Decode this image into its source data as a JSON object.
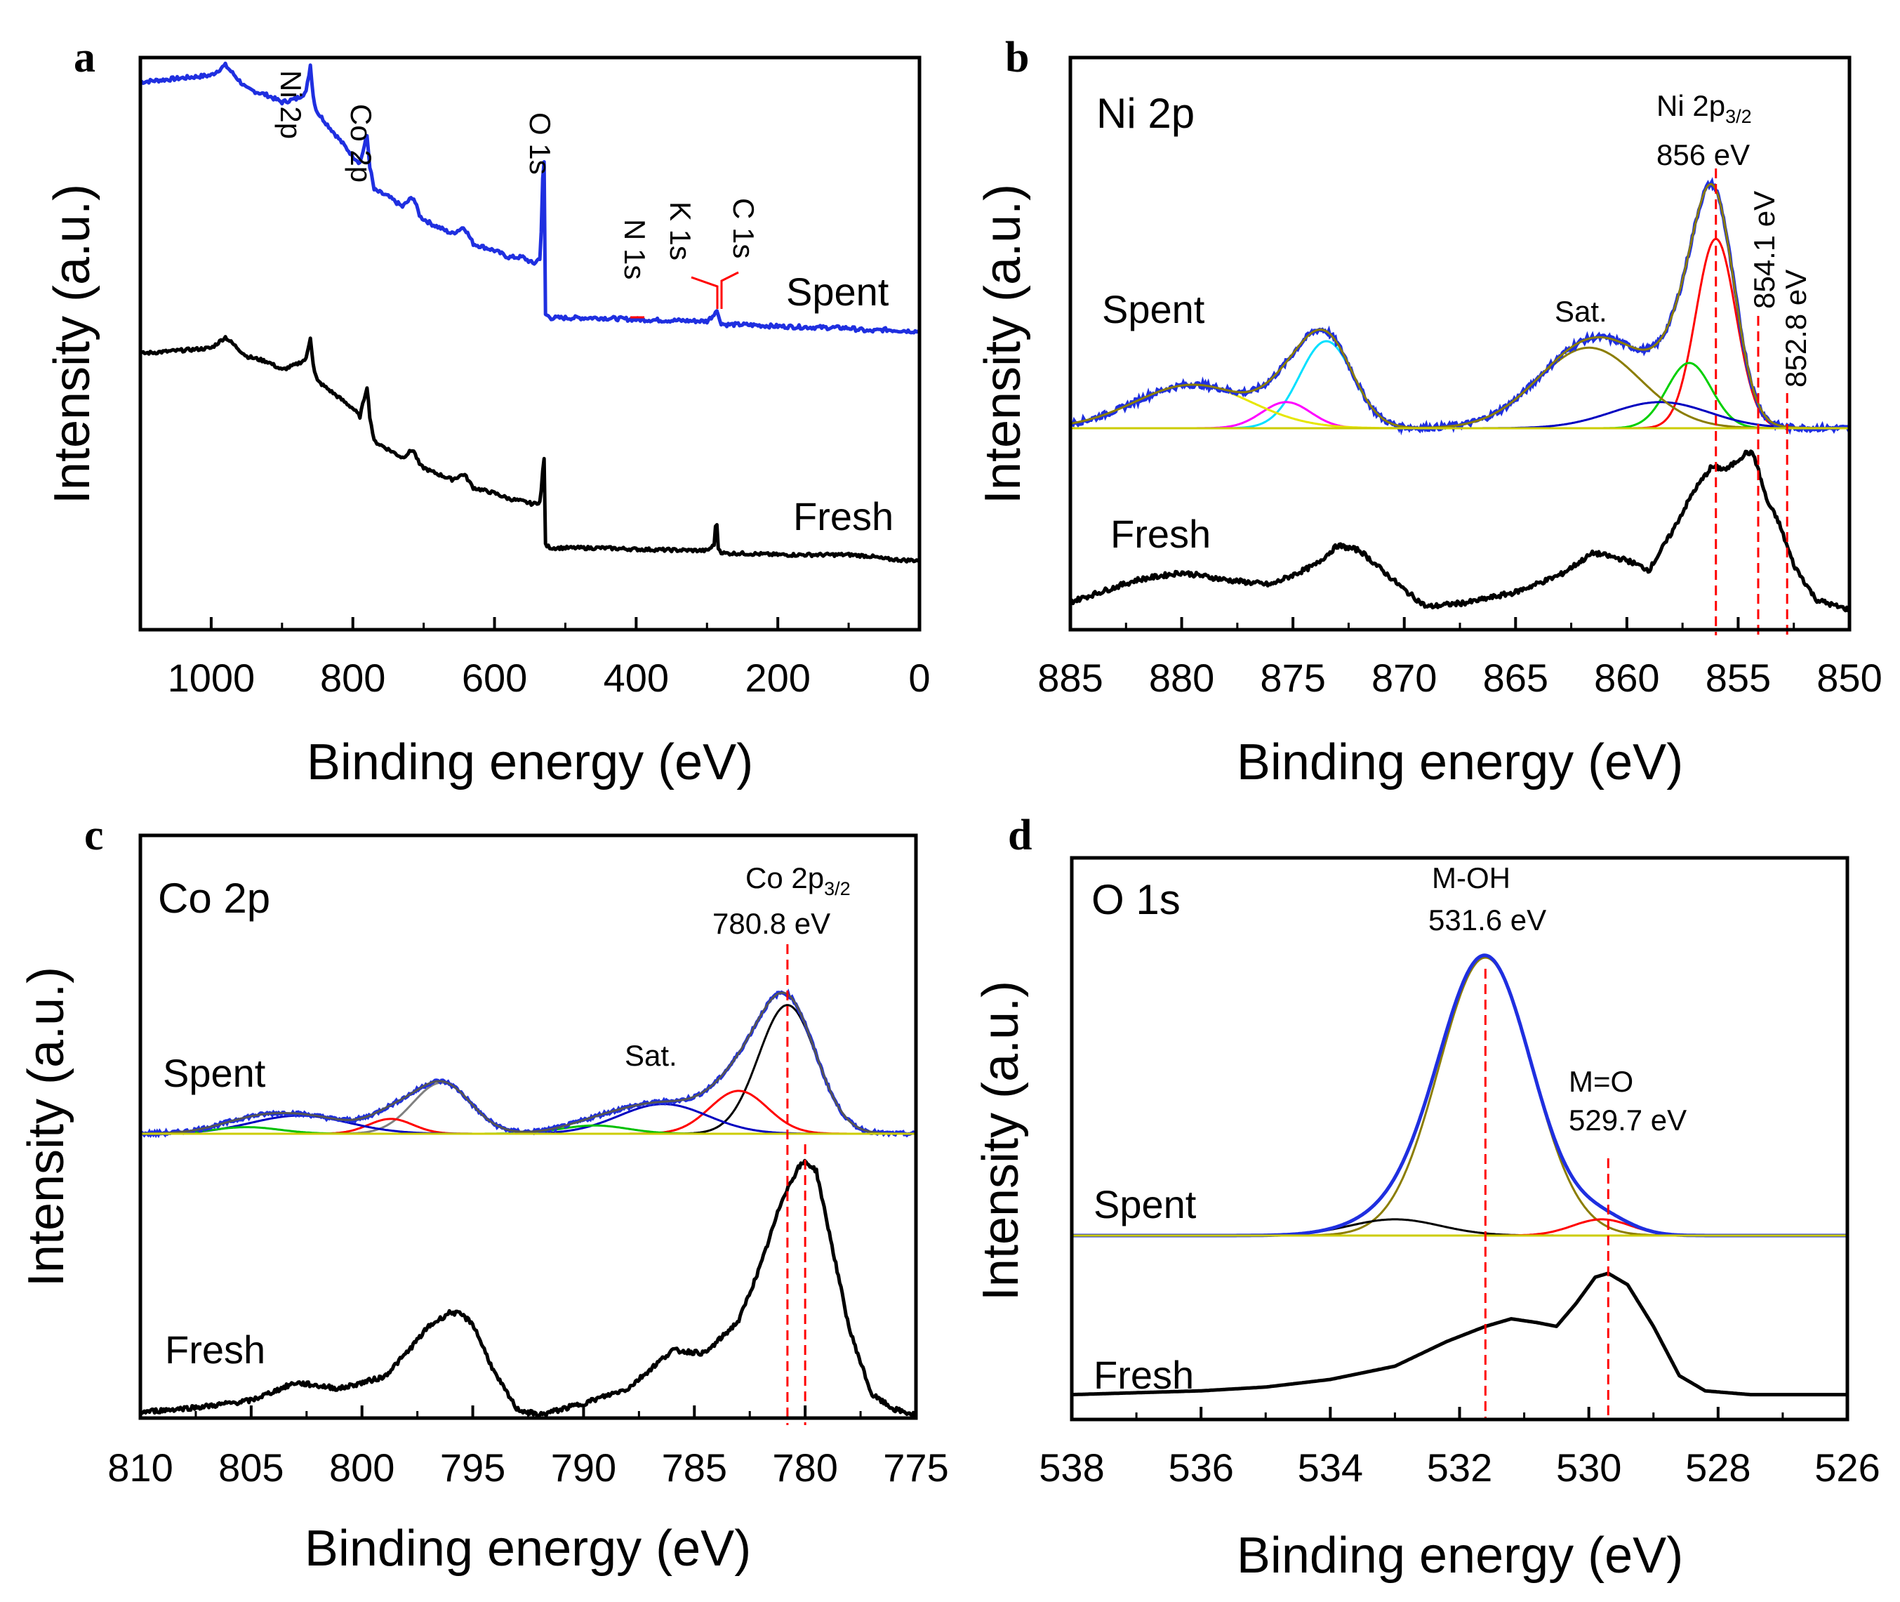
{
  "chart_data": [
    {
      "panel": "a",
      "type": "line",
      "xlabel": "Binding energy (eV)",
      "ylabel": "Intensity (a.u.)",
      "xlim": [
        1100,
        0
      ],
      "xticks": [
        1000,
        800,
        600,
        400,
        200,
        0
      ],
      "series": [
        {
          "name": "Spent",
          "color": "#1f2fe0",
          "offset": 1.0,
          "x": [
            1100,
            1050,
            1000,
            980,
            950,
            920,
            900,
            880,
            866,
            860,
            855,
            850,
            800,
            790,
            780,
            776,
            770,
            750,
            730,
            715,
            705,
            690,
            660,
            643,
            630,
            600,
            580,
            560,
            545,
            535,
            532,
            530,
            528,
            520,
            450,
            400,
            300,
            290,
            287,
            284,
            280,
            275,
            250,
            200,
            150,
            100,
            70,
            50,
            20,
            0
          ],
          "y": [
            0.74,
            0.75,
            0.76,
            0.79,
            0.72,
            0.7,
            0.68,
            0.69,
            0.71,
            0.79,
            0.68,
            0.65,
            0.52,
            0.5,
            0.58,
            0.49,
            0.42,
            0.4,
            0.37,
            0.4,
            0.34,
            0.32,
            0.29,
            0.31,
            0.26,
            0.24,
            0.22,
            0.22,
            0.2,
            0.22,
            0.45,
            0.5,
            0.05,
            0.04,
            0.04,
            0.035,
            0.03,
            0.05,
            0.07,
            0.045,
            0.025,
            0.02,
            0.02,
            0.015,
            0.012,
            0.01,
            0.0,
            0.005,
            0.002,
            0.0
          ]
        },
        {
          "name": "Fresh",
          "color": "#000000",
          "offset": 0.0,
          "x": [
            1100,
            1050,
            1000,
            980,
            950,
            920,
            900,
            880,
            866,
            860,
            855,
            850,
            800,
            790,
            780,
            776,
            770,
            750,
            730,
            715,
            705,
            690,
            660,
            643,
            630,
            600,
            580,
            560,
            545,
            535,
            532,
            530,
            528,
            520,
            450,
            400,
            300,
            290,
            287,
            284,
            280,
            275,
            250,
            200,
            150,
            100,
            70,
            50,
            20,
            0
          ],
          "y": [
            0.76,
            0.77,
            0.78,
            0.82,
            0.75,
            0.73,
            0.7,
            0.72,
            0.74,
            0.82,
            0.7,
            0.66,
            0.56,
            0.53,
            0.64,
            0.53,
            0.44,
            0.41,
            0.38,
            0.41,
            0.35,
            0.33,
            0.3,
            0.32,
            0.27,
            0.25,
            0.23,
            0.22,
            0.21,
            0.22,
            0.33,
            0.38,
            0.06,
            0.05,
            0.05,
            0.045,
            0.04,
            0.06,
            0.17,
            0.05,
            0.035,
            0.03,
            0.03,
            0.025,
            0.025,
            0.025,
            0.02,
            0.01,
            0.005,
            0.005
          ]
        }
      ],
      "labels": {
        "spent": "Spent",
        "fresh": "Fresh"
      },
      "annotations": [
        "Ni 2p",
        "Co 2p",
        "O 1s",
        "N 1s",
        "K 1s",
        "C 1s"
      ]
    },
    {
      "panel": "b",
      "type": "line",
      "title": "Ni 2p",
      "xlabel": "Binding energy (eV)",
      "ylabel": "Intensity (a.u.)",
      "xlim": [
        885,
        850
      ],
      "xticks": [
        885,
        880,
        875,
        870,
        865,
        860,
        855,
        850
      ],
      "spent_peaks": [
        {
          "name": "fit-red",
          "center": 856.0,
          "amp": 0.87,
          "width": 0.9,
          "color": "#ff0000"
        },
        {
          "name": "fit-green",
          "center": 857.2,
          "amp": 0.3,
          "width": 1.0,
          "color": "#00d000"
        },
        {
          "name": "fit-blue",
          "center": 858.5,
          "amp": 0.12,
          "width": 2.2,
          "color": "#0000c0"
        },
        {
          "name": "fit-olive",
          "center": 861.7,
          "amp": 0.37,
          "width": 2.3,
          "color": "#8b7d00"
        },
        {
          "name": "fit-cyan",
          "center": 873.5,
          "amp": 0.4,
          "width": 1.2,
          "color": "#00e0ff"
        },
        {
          "name": "fit-magenta",
          "center": 875.3,
          "amp": 0.12,
          "width": 1.1,
          "color": "#ff00ff"
        },
        {
          "name": "fit-yellow",
          "center": 879.5,
          "amp": 0.2,
          "width": 2.6,
          "color": "#e6e600"
        }
      ],
      "fresh": {
        "x": [
          885,
          882,
          880,
          878,
          876,
          874,
          873,
          872,
          870,
          869,
          867,
          865,
          863,
          861.5,
          860,
          859,
          858,
          857,
          856.2,
          855.5,
          854.6,
          854.3,
          853.7,
          853.2,
          852.5,
          851.5,
          850.5,
          850
        ],
        "y": [
          0.05,
          0.14,
          0.17,
          0.14,
          0.12,
          0.2,
          0.28,
          0.26,
          0.1,
          0.03,
          0.05,
          0.09,
          0.16,
          0.25,
          0.22,
          0.18,
          0.33,
          0.5,
          0.6,
          0.59,
          0.66,
          0.65,
          0.46,
          0.38,
          0.2,
          0.06,
          0.03,
          0.02
        ]
      },
      "labels": {
        "spent": "Spent",
        "fresh": "Fresh",
        "sat": "Sat."
      },
      "refs": [
        {
          "value": 856.0,
          "label": "856 eV",
          "label2": "Ni 2p",
          "sub": "3/2"
        },
        {
          "value": 854.1,
          "label": "854.1 eV"
        },
        {
          "value": 852.8,
          "label": "852.8 eV"
        }
      ]
    },
    {
      "panel": "c",
      "type": "line",
      "title": "Co 2p",
      "xlabel": "Binding energy (eV)",
      "ylabel": "Intensity (a.u.)",
      "xlim": [
        810,
        775
      ],
      "xticks": [
        810,
        805,
        800,
        795,
        790,
        785,
        780,
        775
      ],
      "spent_peaks": [
        {
          "name": "fit-black",
          "center": 780.8,
          "amp": 0.78,
          "width": 1.3,
          "color": "#000000"
        },
        {
          "name": "fit-red-main",
          "center": 783.0,
          "amp": 0.26,
          "width": 1.3,
          "color": "#ff0000"
        },
        {
          "name": "fit-blue",
          "center": 786.4,
          "amp": 0.18,
          "width": 2.0,
          "color": "#0000c0"
        },
        {
          "name": "fit-green-a",
          "center": 789.5,
          "amp": 0.05,
          "width": 1.5,
          "color": "#00c000"
        },
        {
          "name": "fit-gray",
          "center": 796.4,
          "amp": 0.31,
          "width": 1.3,
          "color": "#808080"
        },
        {
          "name": "fit-red-b",
          "center": 798.7,
          "amp": 0.09,
          "width": 1.0,
          "color": "#ff0000"
        },
        {
          "name": "fit-blue-b",
          "center": 802.8,
          "amp": 0.11,
          "width": 2.2,
          "color": "#0000c0"
        },
        {
          "name": "fit-green-b",
          "center": 805.2,
          "amp": 0.04,
          "width": 1.5,
          "color": "#00c000"
        }
      ],
      "fresh": {
        "x": [
          810,
          807,
          805,
          803,
          801,
          799,
          798,
          797,
          796,
          795.5,
          795,
          794,
          793,
          792,
          790,
          788,
          786,
          784.5,
          783,
          782,
          781,
          780.3,
          780,
          779.5,
          779,
          778,
          777,
          776,
          775
        ],
        "y": [
          0.02,
          0.04,
          0.06,
          0.12,
          0.1,
          0.14,
          0.22,
          0.31,
          0.36,
          0.35,
          0.32,
          0.15,
          0.03,
          0.01,
          0.05,
          0.1,
          0.23,
          0.22,
          0.33,
          0.52,
          0.75,
          0.85,
          0.87,
          0.84,
          0.66,
          0.3,
          0.08,
          0.03,
          0.01
        ]
      },
      "labels": {
        "spent": "Spent",
        "fresh": "Fresh",
        "sat": "Sat."
      },
      "refs": [
        {
          "value": 780.8,
          "label": "780.8 eV",
          "label2": "Co 2p",
          "sub": "3/2"
        },
        {
          "value": 780.0,
          "label": ""
        }
      ]
    },
    {
      "panel": "d",
      "type": "line",
      "title": "O 1s",
      "xlabel": "Binding energy (eV)",
      "ylabel": "Intensity (a.u.)",
      "xlim": [
        538,
        526
      ],
      "xticks": [
        538,
        536,
        534,
        532,
        530,
        528,
        526
      ],
      "spent_peaks": [
        {
          "name": "fit-olive",
          "center": 531.6,
          "amp": 1.2,
          "width": 0.72,
          "color": "#8b7d00"
        },
        {
          "name": "fit-black",
          "center": 533.0,
          "amp": 0.07,
          "width": 0.7,
          "color": "#000000"
        },
        {
          "name": "fit-red",
          "center": 529.8,
          "amp": 0.07,
          "width": 0.45,
          "color": "#ff0000"
        }
      ],
      "fresh": {
        "x": [
          538,
          536,
          535,
          534,
          533,
          532.2,
          531.6,
          531.2,
          530.8,
          530.5,
          530.2,
          529.9,
          529.7,
          529.4,
          529.0,
          528.6,
          528.2,
          527.5,
          526
        ],
        "y": [
          0.02,
          0.04,
          0.06,
          0.1,
          0.17,
          0.3,
          0.38,
          0.42,
          0.4,
          0.38,
          0.5,
          0.64,
          0.66,
          0.6,
          0.38,
          0.12,
          0.04,
          0.02,
          0.02
        ]
      },
      "labels": {
        "spent": "Spent",
        "fresh": "Fresh"
      },
      "refs": [
        {
          "value": 531.6,
          "label": "531.6 eV",
          "label2": "M-OH"
        },
        {
          "value": 529.7,
          "label": "529.7 eV",
          "label2": "M=O"
        }
      ]
    }
  ],
  "panels": {
    "a": "a",
    "b": "b",
    "c": "c",
    "d": "d"
  }
}
